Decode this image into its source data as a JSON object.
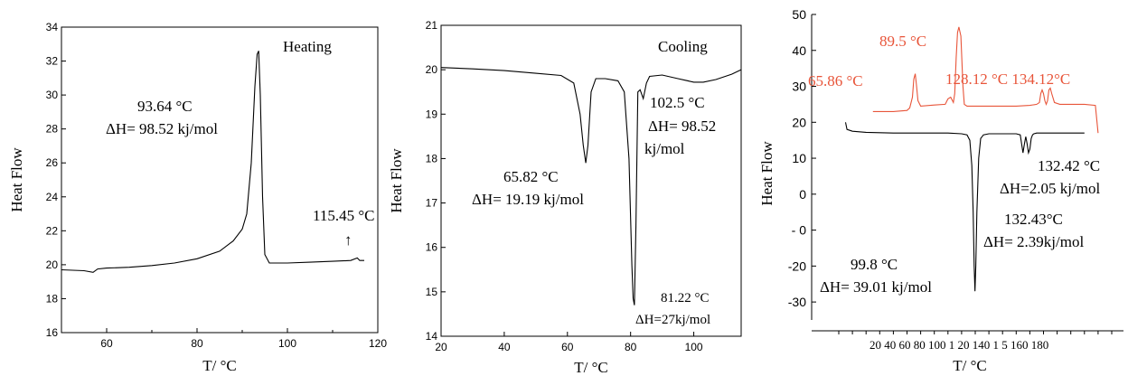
{
  "colors": {
    "black": "#000000",
    "red": "#e8553a"
  },
  "chart_data": [
    {
      "type": "line",
      "xlabel": "T/ °C",
      "ylabel": "Heat Flow",
      "xlim": [
        50,
        120
      ],
      "ylim": [
        16,
        34
      ],
      "xticks": [
        "60",
        "80",
        "100",
        "120"
      ],
      "yticks": [
        "16",
        "18",
        "20",
        "22",
        "24",
        "26",
        "28",
        "30",
        "32",
        "34"
      ],
      "series": [
        {
          "x": [
            50,
            55,
            57,
            58,
            60,
            65,
            70,
            75,
            80,
            85,
            88,
            90,
            91,
            92,
            92.8,
            93.3,
            93.64,
            94,
            94.5,
            95,
            96,
            100,
            105,
            110,
            114,
            115.45,
            116,
            117
          ],
          "y": [
            19.7,
            19.65,
            19.55,
            19.75,
            19.8,
            19.85,
            19.95,
            20.1,
            20.35,
            20.8,
            21.4,
            22.1,
            23.0,
            26.0,
            30.5,
            32.4,
            32.6,
            30.0,
            24.0,
            20.6,
            20.1,
            20.1,
            20.15,
            20.2,
            20.25,
            20.4,
            20.25,
            20.25
          ]
        }
      ],
      "annotations": [
        {
          "label": "Heating",
          "text": "Heating"
        },
        {
          "label": "peak1",
          "text": "93.64 °C"
        },
        {
          "label": "enthalpy1",
          "text": "ΔH= 98.52 kj/mol"
        },
        {
          "label": "peak2",
          "text": "115.45 °C"
        },
        {
          "label": "arrow",
          "text": "↑"
        }
      ]
    },
    {
      "type": "line",
      "xlabel": "T/ °C",
      "ylabel": "Heat Flow",
      "xlim": [
        20,
        115
      ],
      "ylim": [
        14,
        21
      ],
      "xticks": [
        "20",
        "40",
        "60",
        "80",
        "100"
      ],
      "yticks": [
        "14",
        "15",
        "16",
        "17",
        "18",
        "19",
        "20",
        "21"
      ],
      "series": [
        {
          "x": [
            20,
            30,
            40,
            50,
            58,
            62,
            64,
            65,
            65.82,
            66.5,
            67.5,
            69,
            72,
            76,
            78,
            79.5,
            80.4,
            80.8,
            81.22,
            81.7,
            82.3,
            83,
            84,
            85,
            86,
            90,
            95,
            100,
            103,
            107,
            112,
            115
          ],
          "y": [
            20.05,
            20.02,
            19.98,
            19.92,
            19.87,
            19.7,
            19.0,
            18.3,
            17.9,
            18.3,
            19.5,
            19.8,
            19.8,
            19.75,
            19.5,
            18.0,
            15.6,
            14.85,
            14.7,
            16.5,
            19.5,
            19.55,
            19.35,
            19.7,
            19.85,
            19.88,
            19.8,
            19.72,
            19.72,
            19.78,
            19.9,
            20.0
          ]
        }
      ],
      "annotations": [
        {
          "label": "Cooling",
          "text": "Cooling"
        },
        {
          "label": "peakA",
          "text": "102.5  °C"
        },
        {
          "label": "enthA1",
          "text": "ΔH= 98.52"
        },
        {
          "label": "enthA2",
          "text": "kj/mol"
        },
        {
          "label": "peakB",
          "text": "65.82 °C"
        },
        {
          "label": "enthB",
          "text": "ΔH= 19.19 kj/mol"
        },
        {
          "label": "peakC",
          "text": "81.22 °C"
        },
        {
          "label": "enthC",
          "text": "ΔH=27kj/mol"
        }
      ]
    },
    {
      "type": "line",
      "xlabel": "T/ °C",
      "ylabel": "Heat Flow",
      "xlim": [
        0,
        200
      ],
      "ylim": [
        -35,
        50
      ],
      "yticks": [
        "50",
        "40",
        "30",
        "20",
        "10",
        "0",
        "- 0",
        "-20",
        "-30"
      ],
      "xtick_text": "20 40 60 80 100 1 20 140 1 5 160 180",
      "series": [
        {
          "name": "",
          "color": "#e8553a",
          "x": [
            25,
            40,
            50,
            52,
            54,
            55,
            56,
            57,
            58,
            60,
            70,
            78,
            80,
            82,
            84,
            85,
            86,
            87,
            88,
            89.5,
            91,
            92,
            94,
            100,
            110,
            120,
            130,
            140,
            145,
            147,
            148,
            149,
            150,
            151,
            152,
            153,
            154,
            155,
            156,
            158,
            162,
            170,
            180,
            188,
            190
          ],
          "y": [
            23,
            23,
            23.3,
            24,
            27,
            32,
            33.5,
            30,
            26,
            24.5,
            24.8,
            25,
            26.5,
            27,
            25.5,
            28,
            38,
            45,
            46.5,
            44,
            30,
            25,
            24.5,
            24.5,
            24.5,
            24.5,
            24.5,
            24.7,
            25,
            25.5,
            28,
            29,
            28,
            26,
            25,
            26,
            29,
            29.5,
            28,
            25.5,
            25,
            25,
            25,
            24.7,
            17
          ]
        },
        {
          "name": "",
          "color": "#000000",
          "x": [
            5,
            6,
            10,
            20,
            40,
            60,
            80,
            90,
            94,
            96,
            97.5,
            98.5,
            99.2,
            99.8,
            100.4,
            101.2,
            102.5,
            104,
            106,
            110,
            120,
            130,
            133,
            134,
            135,
            136,
            137,
            138,
            139,
            140,
            141,
            142,
            143,
            145,
            150,
            160,
            170,
            180
          ],
          "y": [
            20,
            18,
            17.5,
            17.2,
            17,
            17,
            17,
            16.8,
            16.5,
            15,
            8,
            -5,
            -20,
            -27,
            -20,
            -5,
            10,
            15.5,
            16.5,
            16.8,
            16.8,
            16.8,
            16.5,
            14,
            11.5,
            14,
            16,
            14,
            11.5,
            12.5,
            15.5,
            16.5,
            16.8,
            17,
            17,
            17,
            17,
            17
          ]
        }
      ],
      "annotations": [
        {
          "label": "r1",
          "text": "89.5 °C"
        },
        {
          "label": "r2",
          "text": "65.86 °C"
        },
        {
          "label": "r3",
          "text": "128.12 °C 134.12°C"
        },
        {
          "label": "k1",
          "text": "132.42 °C"
        },
        {
          "label": "k2",
          "text": "ΔH=2.05 kj/mol"
        },
        {
          "label": "k3",
          "text": "132.43°C"
        },
        {
          "label": "k4",
          "text": "ΔH= 2.39kj/mol"
        },
        {
          "label": "k5",
          "text": "99.8 °C"
        },
        {
          "label": "k6",
          "text": "ΔH= 39.01 kj/mol"
        }
      ]
    }
  ]
}
